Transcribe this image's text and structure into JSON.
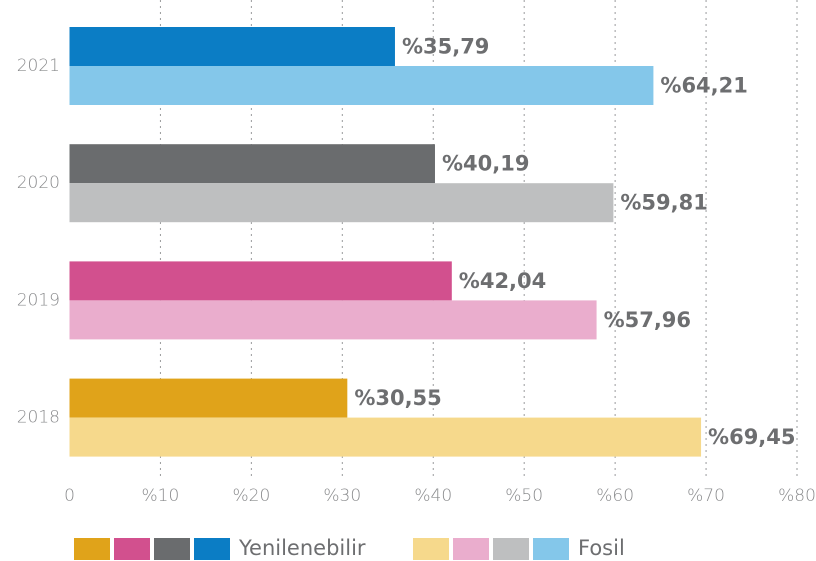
{
  "chart_data": {
    "type": "bar",
    "orientation": "horizontal",
    "categories": [
      "2021",
      "2020",
      "2019",
      "2018"
    ],
    "series": [
      {
        "name": "Yenilenebilir",
        "colors": [
          "#0b7dc5",
          "#6a6c6e",
          "#d2508e",
          "#e0a31a"
        ],
        "values": [
          35.79,
          40.19,
          42.04,
          30.55
        ],
        "value_labels": [
          "%35,79",
          "%40,19",
          "%42,04",
          "%30,55"
        ]
      },
      {
        "name": "Fosil",
        "colors": [
          "#84c7ea",
          "#bebfc0",
          "#eaadcd",
          "#f6d98c"
        ],
        "values": [
          64.21,
          59.81,
          57.96,
          69.45
        ],
        "value_labels": [
          "%64,21",
          "%59,81",
          "%57,96",
          "%69,45"
        ]
      }
    ],
    "xlim": [
      0,
      80
    ],
    "xticks": [
      0,
      {
        "value": 10,
        "label": "%10"
      },
      {
        "value": 20,
        "label": "%20"
      },
      {
        "value": 30,
        "label": "%30"
      },
      {
        "value": 40,
        "label": "%40"
      },
      {
        "value": 50,
        "label": "%50"
      },
      {
        "value": 60,
        "label": "%60"
      },
      {
        "value": 70,
        "label": "%70"
      },
      {
        "value": 80,
        "label": "%80"
      }
    ],
    "grid": true
  }
}
